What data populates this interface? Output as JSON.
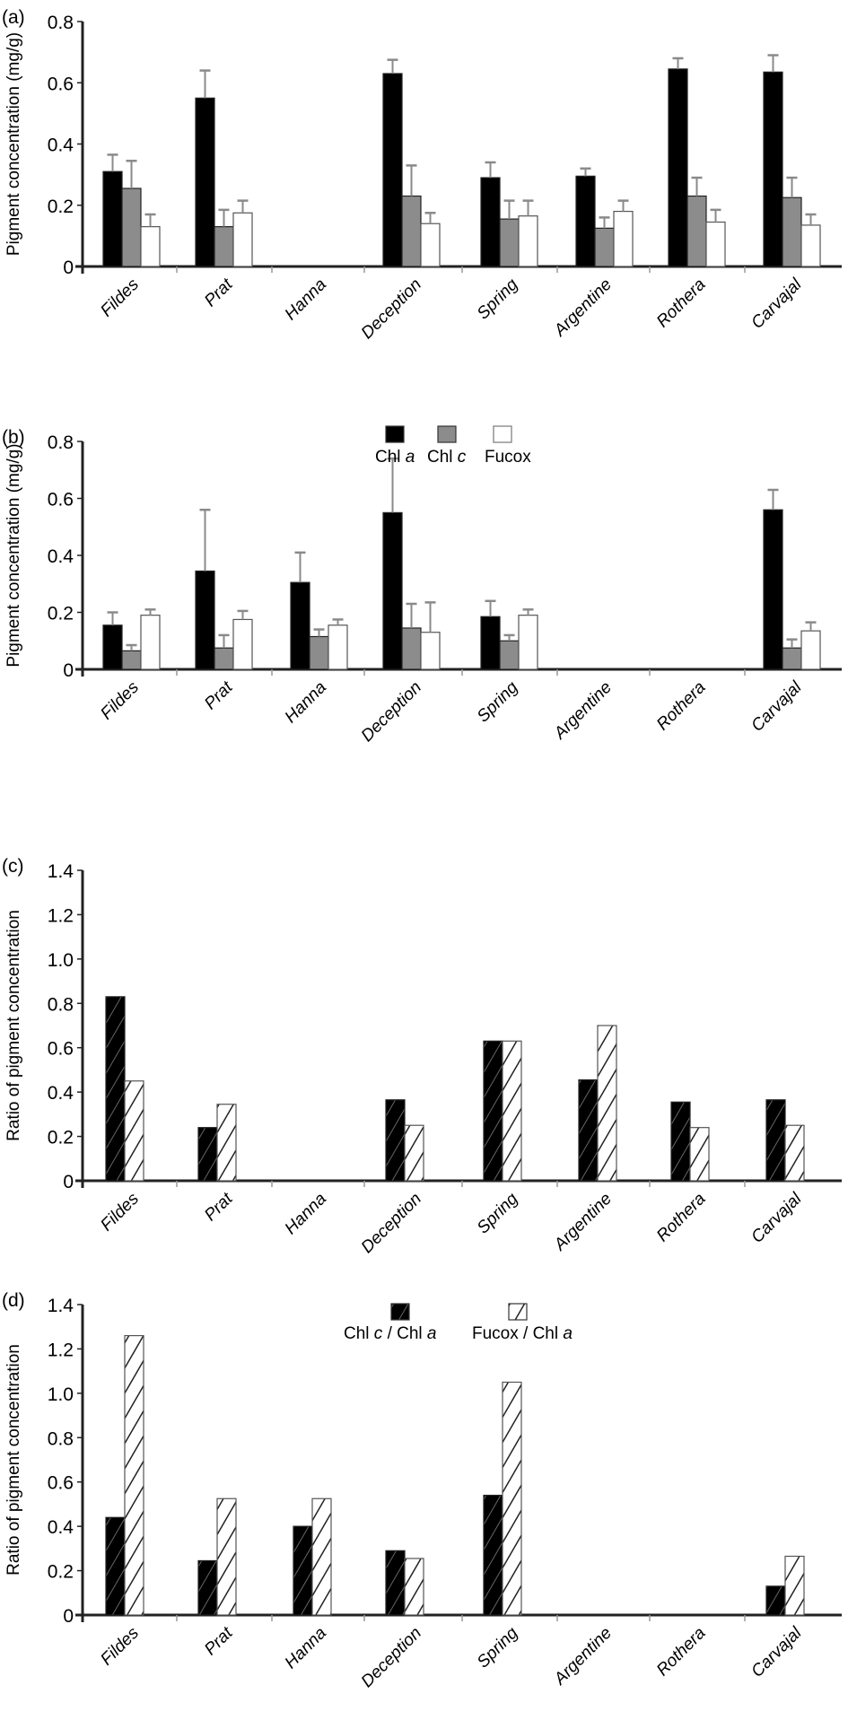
{
  "chart_data": [
    {
      "id": "a",
      "panel_label": "(a)",
      "type": "bar",
      "ylabel": "Pigment concentration (mg/g)",
      "xlabel": "",
      "ylim": [
        0,
        0.8
      ],
      "yticks": [
        "0",
        "0.2",
        "0.4",
        "0.6",
        "0.8"
      ],
      "ytick_values": [
        0,
        0.2,
        0.4,
        0.6,
        0.8
      ],
      "categories": [
        "Fildes",
        "Prat",
        "Hanna",
        "Deception",
        "Spring",
        "Argentine",
        "Rothera",
        "Carvajal"
      ],
      "error_bars": true,
      "series": [
        {
          "name": "Chl a",
          "fill": "solid-black",
          "values": [
            0.31,
            0.55,
            null,
            0.63,
            0.29,
            0.295,
            0.645,
            0.635
          ],
          "errors": [
            0.055,
            0.09,
            null,
            0.045,
            0.05,
            0.025,
            0.035,
            0.055
          ]
        },
        {
          "name": "Chl c",
          "fill": "solid-gray",
          "values": [
            0.255,
            0.13,
            null,
            0.23,
            0.155,
            0.125,
            0.23,
            0.225
          ],
          "errors": [
            0.09,
            0.055,
            null,
            0.1,
            0.06,
            0.035,
            0.06,
            0.065
          ]
        },
        {
          "name": "Fucox",
          "fill": "white",
          "values": [
            0.13,
            0.175,
            null,
            0.14,
            0.165,
            0.18,
            0.145,
            0.135
          ],
          "errors": [
            0.04,
            0.04,
            null,
            0.035,
            0.05,
            0.035,
            0.04,
            0.035
          ]
        }
      ],
      "legend": null
    },
    {
      "id": "b",
      "panel_label": "(b)",
      "type": "bar",
      "ylabel": "Pigment concentration (mg/g)",
      "xlabel": "",
      "ylim": [
        0,
        0.8
      ],
      "yticks": [
        "0",
        "0.2",
        "0.4",
        "0.6",
        "0.8"
      ],
      "ytick_values": [
        0,
        0.2,
        0.4,
        0.6,
        0.8
      ],
      "categories": [
        "Fildes",
        "Prat",
        "Hanna",
        "Deception",
        "Spring",
        "Argentine",
        "Rothera",
        "Carvajal"
      ],
      "error_bars": true,
      "series": [
        {
          "name": "Chl a",
          "fill": "solid-black",
          "values": [
            0.155,
            0.345,
            0.305,
            0.55,
            0.185,
            null,
            null,
            0.56
          ],
          "errors": [
            0.045,
            0.215,
            0.105,
            0.19,
            0.055,
            null,
            null,
            0.07
          ]
        },
        {
          "name": "Chl c",
          "fill": "solid-gray",
          "values": [
            0.065,
            0.075,
            0.115,
            0.145,
            0.1,
            null,
            null,
            0.075
          ],
          "errors": [
            0.02,
            0.045,
            0.025,
            0.085,
            0.02,
            null,
            null,
            0.03
          ]
        },
        {
          "name": "Fucox",
          "fill": "white",
          "values": [
            0.19,
            0.175,
            0.155,
            0.13,
            0.19,
            null,
            null,
            0.135
          ],
          "errors": [
            0.02,
            0.03,
            0.02,
            0.105,
            0.02,
            null,
            null,
            0.03
          ]
        }
      ],
      "legend": {
        "position": "top-center",
        "entries": [
          {
            "prefix": "Chl ",
            "italic": "a",
            "suffix": "",
            "fill": "solid-black"
          },
          {
            "prefix": "Chl ",
            "italic": "c",
            "suffix": "",
            "fill": "solid-gray"
          },
          {
            "prefix": "Fucox",
            "italic": "",
            "suffix": "",
            "fill": "white"
          }
        ]
      }
    },
    {
      "id": "c",
      "panel_label": "(c)",
      "type": "bar",
      "ylabel": "Ratio of pigment concentration",
      "xlabel": "",
      "ylim": [
        0,
        1.4
      ],
      "yticks": [
        "0",
        "0.2",
        "0.4",
        "0.6",
        "0.8",
        "1.0",
        "1.2",
        "1.4"
      ],
      "ytick_values": [
        0,
        0.2,
        0.4,
        0.6,
        0.8,
        1.0,
        1.2,
        1.4
      ],
      "categories": [
        "Fildes",
        "Prat",
        "Hanna",
        "Deception",
        "Spring",
        "Argentine",
        "Rothera",
        "Carvajal"
      ],
      "error_bars": false,
      "series": [
        {
          "name": "Chl c / Chl a",
          "fill": "hatched-black",
          "values": [
            0.83,
            0.24,
            null,
            0.365,
            0.63,
            0.455,
            0.355,
            0.365
          ]
        },
        {
          "name": "Fucox / Chl a",
          "fill": "hatched-white",
          "values": [
            0.45,
            0.345,
            null,
            0.25,
            0.63,
            0.7,
            0.24,
            0.25
          ]
        }
      ],
      "legend": null
    },
    {
      "id": "d",
      "panel_label": "(d)",
      "type": "bar",
      "ylabel": "Ratio of pigment concentration",
      "xlabel": "",
      "ylim": [
        0,
        1.4
      ],
      "yticks": [
        "0",
        "0.2",
        "0.4",
        "0.6",
        "0.8",
        "1.0",
        "1.2",
        "1.4"
      ],
      "ytick_values": [
        0,
        0.2,
        0.4,
        0.6,
        0.8,
        1.0,
        1.2,
        1.4
      ],
      "categories": [
        "Fildes",
        "Prat",
        "Hanna",
        "Deception",
        "Spring",
        "Argentine",
        "Rothera",
        "Carvajal"
      ],
      "error_bars": false,
      "series": [
        {
          "name": "Chl c / Chl a",
          "fill": "hatched-black",
          "values": [
            0.44,
            0.245,
            0.4,
            0.29,
            0.54,
            null,
            null,
            0.13
          ]
        },
        {
          "name": "Fucox / Chl a",
          "fill": "hatched-white",
          "values": [
            1.26,
            0.525,
            0.525,
            0.255,
            1.05,
            null,
            null,
            0.265
          ]
        }
      ],
      "legend": {
        "position": "top-center",
        "entries": [
          {
            "prefix": "Chl ",
            "italic": "c",
            "suffix": " / Chl ",
            "italic2": "a",
            "fill": "hatched-black"
          },
          {
            "prefix": "Fucox / Chl ",
            "italic": "a",
            "suffix": "",
            "italic2": "",
            "fill": "hatched-white"
          }
        ]
      }
    }
  ],
  "colors": {
    "black": "#000000",
    "gray": "#8c8c8c",
    "white": "#ffffff",
    "axis": "#222222",
    "errorbar": "#8a8a8a"
  }
}
